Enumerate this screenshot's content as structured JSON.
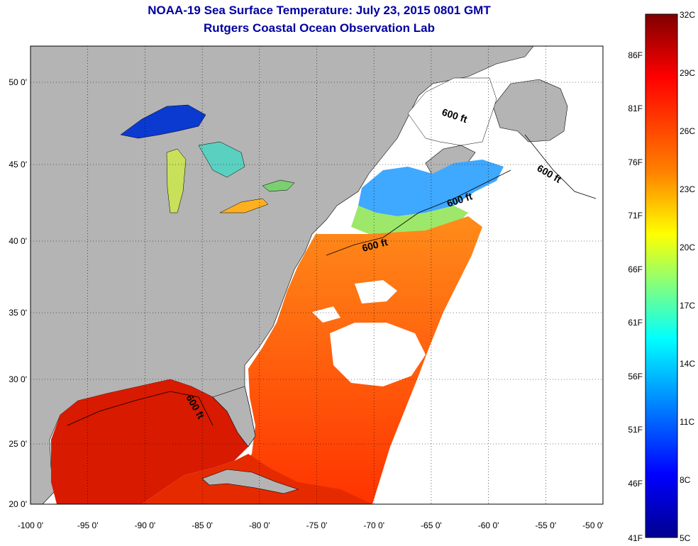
{
  "title": "NOAA-19 Sea Surface Temperature:  July 23, 2015 0801 GMT",
  "subtitle": "Rutgers Coastal Ocean Observation Lab",
  "map": {
    "lon_range": [
      -100,
      -50
    ],
    "lat_range": [
      20,
      52
    ],
    "lon_ticks": [
      "-100 0'",
      "-95 0'",
      "-90 0'",
      "-85 0'",
      "-80 0'",
      "-75 0'",
      "-70 0'",
      "-65 0'",
      "-60 0'",
      "-55 0'",
      "-50 0'"
    ],
    "lat_ticks": [
      "20 0'",
      "25 0'",
      "30 0'",
      "35 0'",
      "40 0'",
      "45 0'",
      "50 0'"
    ],
    "grid": "dotted",
    "land_color": "#b4b4b4",
    "contour_labels": [
      "600 ft",
      "600 ft",
      "600 ft",
      "600 ft",
      "600 ft"
    ]
  },
  "colorbar": {
    "celsius_labels": [
      "32C",
      "29C",
      "26C",
      "23C",
      "20C",
      "17C",
      "14C",
      "11C",
      "8C",
      "5C"
    ],
    "fahrenheit_labels": [
      "86F",
      "81F",
      "76F",
      "71F",
      "66F",
      "61F",
      "56F",
      "51F",
      "46F",
      "41F"
    ],
    "min": "5C",
    "max": "32C",
    "colors": [
      "#7f0000",
      "#ff0000",
      "#ff8000",
      "#ffff00",
      "#80ff80",
      "#00ffff",
      "#0080ff",
      "#0000ff",
      "#00008f"
    ]
  }
}
